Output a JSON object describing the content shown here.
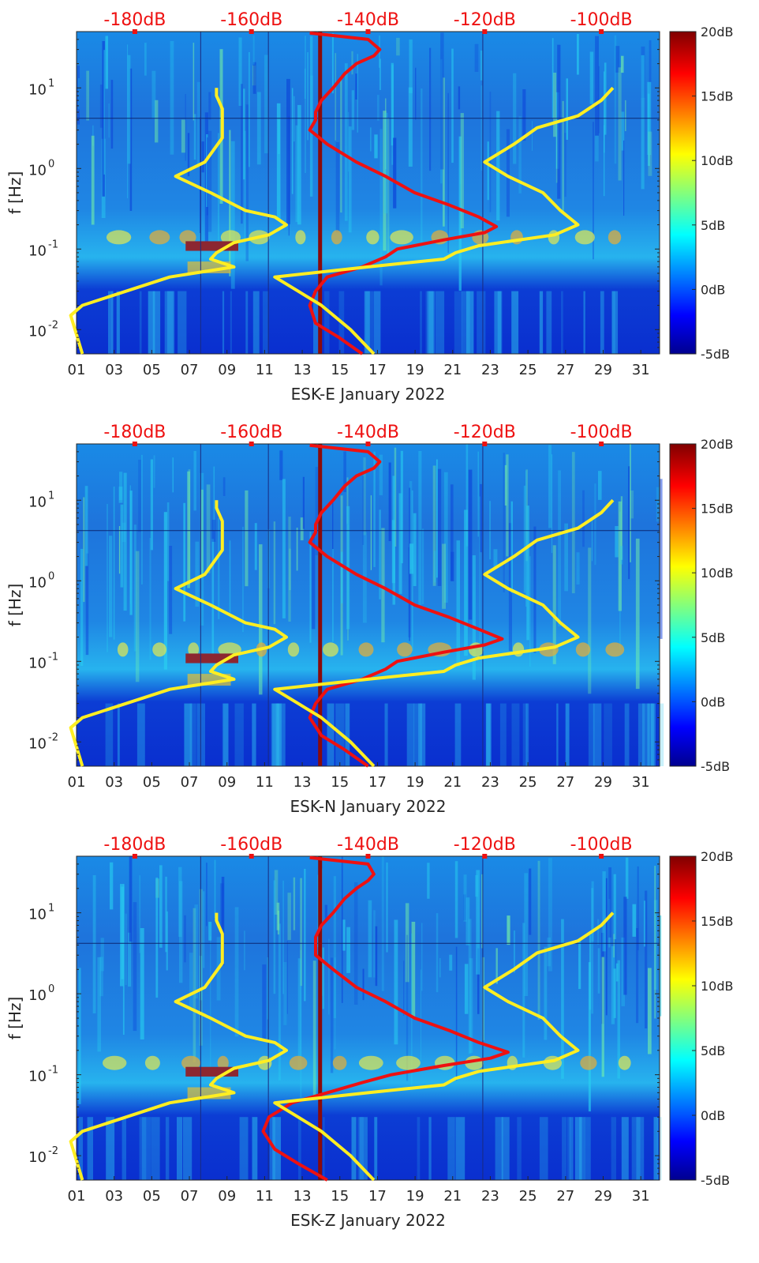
{
  "chart_data": [
    {
      "type": "heatmap",
      "title": "",
      "xlabel": "ESK-E January 2022",
      "ylabel": "f [Hz]",
      "x_ticks": [
        "01",
        "03",
        "05",
        "07",
        "09",
        "11",
        "13",
        "15",
        "17",
        "19",
        "21",
        "23",
        "25",
        "27",
        "29",
        "31"
      ],
      "xlim": [
        1,
        32
      ],
      "ylim_hz": [
        0.005,
        50
      ],
      "y_ticks": [
        {
          "label": "10",
          "exp": "-2",
          "value": 0.01
        },
        {
          "label": "10",
          "exp": "-1",
          "value": 0.1
        },
        {
          "label": "10",
          "exp": "0",
          "value": 1
        },
        {
          "label": "10",
          "exp": "1",
          "value": 10
        }
      ],
      "top_axis_labels": [
        "-180dB",
        "-160dB",
        "-140dB",
        "-120dB",
        "-100dB"
      ],
      "top_axis_range_db": [
        -190,
        -90
      ],
      "colorbar": {
        "ticks": [
          "20dB",
          "15dB",
          "10dB",
          "5dB",
          "0dB",
          "-5dB"
        ],
        "range_db": [
          -5,
          20
        ]
      },
      "series": [
        {
          "name": "red PSD curve",
          "color": "#ee1111",
          "freq": [
            0.005,
            0.008,
            0.012,
            0.02,
            0.03,
            0.045,
            0.06,
            0.08,
            0.1,
            0.13,
            0.16,
            0.19,
            0.25,
            0.35,
            0.5,
            0.8,
            1.2,
            2,
            3,
            4,
            5,
            7,
            10,
            15,
            20,
            25,
            30,
            40,
            48
          ],
          "db": [
            -141,
            -145,
            -149,
            -150,
            -149,
            -147,
            -141,
            -137,
            -135,
            -127,
            -120,
            -118,
            -121,
            -126,
            -132,
            -137,
            -142,
            -147,
            -150,
            -149,
            -149,
            -148,
            -146,
            -144,
            -142,
            -139,
            -138,
            -140,
            -150
          ]
        },
        {
          "name": "yellow low-noise model",
          "color": "#ffee22",
          "freq": [
            0.005,
            0.015,
            0.02,
            0.045,
            0.06,
            0.075,
            0.09,
            0.12,
            0.15,
            0.2,
            0.25,
            0.3,
            0.5,
            0.8,
            1.2,
            2.4,
            4,
            5.5,
            8,
            10
          ],
          "db": [
            -189,
            -191,
            -189,
            -174,
            -163,
            -167,
            -166,
            -163,
            -157,
            -154,
            -156,
            -161,
            -167,
            -173,
            -168,
            -165,
            -165,
            -165,
            -166,
            -166
          ]
        },
        {
          "name": "yellow high-noise model",
          "color": "#ffee22",
          "freq": [
            0.005,
            0.01,
            0.02,
            0.03,
            0.045,
            0.06,
            0.075,
            0.09,
            0.11,
            0.15,
            0.2,
            0.3,
            0.5,
            0.8,
            1.2,
            2,
            3.2,
            4.5,
            7,
            10
          ],
          "db": [
            -139,
            -143,
            -148,
            -152,
            -156,
            -140,
            -127,
            -125,
            -121,
            -108,
            -104,
            -107,
            -110,
            -116,
            -120,
            -115,
            -111,
            -104,
            -100,
            -98
          ]
        }
      ]
    },
    {
      "type": "heatmap",
      "title": "",
      "xlabel": "ESK-N January 2022",
      "ylabel": "f [Hz]",
      "x_ticks": [
        "01",
        "03",
        "05",
        "07",
        "09",
        "11",
        "13",
        "15",
        "17",
        "19",
        "21",
        "23",
        "25",
        "27",
        "29",
        "31"
      ],
      "xlim": [
        1,
        32
      ],
      "ylim_hz": [
        0.005,
        50
      ],
      "y_ticks": [
        {
          "label": "10",
          "exp": "-2",
          "value": 0.01
        },
        {
          "label": "10",
          "exp": "-1",
          "value": 0.1
        },
        {
          "label": "10",
          "exp": "0",
          "value": 1
        },
        {
          "label": "10",
          "exp": "1",
          "value": 10
        }
      ],
      "top_axis_labels": [
        "-180dB",
        "-160dB",
        "-140dB",
        "-120dB",
        "-100dB"
      ],
      "top_axis_range_db": [
        -190,
        -90
      ],
      "colorbar": {
        "ticks": [
          "20dB",
          "15dB",
          "10dB",
          "5dB",
          "0dB",
          "-5dB"
        ],
        "range_db": [
          -5,
          20
        ]
      },
      "series": [
        {
          "name": "red PSD curve",
          "color": "#ee1111",
          "freq": [
            0.005,
            0.008,
            0.012,
            0.02,
            0.03,
            0.045,
            0.06,
            0.08,
            0.1,
            0.13,
            0.16,
            0.19,
            0.25,
            0.35,
            0.5,
            0.8,
            1.2,
            2,
            3,
            4,
            5,
            7,
            10,
            15,
            20,
            25,
            30,
            40,
            48
          ],
          "db": [
            -140,
            -144,
            -148,
            -150,
            -149,
            -147,
            -141,
            -137,
            -135,
            -127,
            -120,
            -117,
            -121,
            -126,
            -132,
            -137,
            -142,
            -147,
            -150,
            -149,
            -149,
            -148,
            -146,
            -144,
            -142,
            -139,
            -138,
            -140,
            -150
          ]
        },
        {
          "name": "yellow low-noise model",
          "color": "#ffee22",
          "freq": [
            0.005,
            0.015,
            0.02,
            0.045,
            0.06,
            0.075,
            0.09,
            0.12,
            0.15,
            0.2,
            0.25,
            0.3,
            0.5,
            0.8,
            1.2,
            2.4,
            4,
            5.5,
            8,
            10
          ],
          "db": [
            -189,
            -191,
            -189,
            -174,
            -163,
            -167,
            -166,
            -163,
            -157,
            -154,
            -156,
            -161,
            -167,
            -173,
            -168,
            -165,
            -165,
            -165,
            -166,
            -166
          ]
        },
        {
          "name": "yellow high-noise model",
          "color": "#ffee22",
          "freq": [
            0.005,
            0.01,
            0.02,
            0.03,
            0.045,
            0.06,
            0.075,
            0.09,
            0.11,
            0.15,
            0.2,
            0.3,
            0.5,
            0.8,
            1.2,
            2,
            3.2,
            4.5,
            7,
            10
          ],
          "db": [
            -139,
            -143,
            -148,
            -152,
            -156,
            -140,
            -127,
            -125,
            -121,
            -108,
            -104,
            -107,
            -110,
            -116,
            -120,
            -115,
            -111,
            -104,
            -100,
            -98
          ]
        }
      ]
    },
    {
      "type": "heatmap",
      "title": "",
      "xlabel": "ESK-Z January 2022",
      "ylabel": "f [Hz]",
      "x_ticks": [
        "01",
        "03",
        "05",
        "07",
        "09",
        "11",
        "13",
        "15",
        "17",
        "19",
        "21",
        "23",
        "25",
        "27",
        "29",
        "31"
      ],
      "xlim": [
        1,
        32
      ],
      "ylim_hz": [
        0.005,
        50
      ],
      "y_ticks": [
        {
          "label": "10",
          "exp": "-2",
          "value": 0.01
        },
        {
          "label": "10",
          "exp": "-1",
          "value": 0.1
        },
        {
          "label": "10",
          "exp": "0",
          "value": 1
        },
        {
          "label": "10",
          "exp": "1",
          "value": 10
        }
      ],
      "top_axis_labels": [
        "-180dB",
        "-160dB",
        "-140dB",
        "-120dB",
        "-100dB"
      ],
      "top_axis_range_db": [
        -190,
        -90
      ],
      "colorbar": {
        "ticks": [
          "20dB",
          "15dB",
          "10dB",
          "5dB",
          "0dB",
          "-5dB"
        ],
        "range_db": [
          -5,
          20
        ]
      },
      "series": [
        {
          "name": "red PSD curve",
          "color": "#ee1111",
          "freq": [
            0.005,
            0.008,
            0.012,
            0.02,
            0.03,
            0.045,
            0.06,
            0.08,
            0.1,
            0.13,
            0.16,
            0.19,
            0.25,
            0.35,
            0.5,
            0.8,
            1.2,
            2,
            3,
            4,
            5,
            7,
            10,
            15,
            20,
            25,
            30,
            40,
            48
          ],
          "db": [
            -147,
            -152,
            -156,
            -158,
            -157,
            -153,
            -147,
            -141,
            -136,
            -127,
            -119,
            -116,
            -121,
            -126,
            -132,
            -137,
            -142,
            -146,
            -149,
            -149,
            -149,
            -148,
            -146,
            -144,
            -142,
            -140,
            -139,
            -140,
            -150
          ]
        },
        {
          "name": "yellow low-noise model",
          "color": "#ffee22",
          "freq": [
            0.005,
            0.015,
            0.02,
            0.045,
            0.06,
            0.075,
            0.09,
            0.12,
            0.15,
            0.2,
            0.25,
            0.3,
            0.5,
            0.8,
            1.2,
            2.4,
            4,
            5.5,
            8,
            10
          ],
          "db": [
            -189,
            -191,
            -189,
            -174,
            -163,
            -167,
            -166,
            -163,
            -157,
            -154,
            -156,
            -161,
            -167,
            -173,
            -168,
            -165,
            -165,
            -165,
            -166,
            -166
          ]
        },
        {
          "name": "yellow high-noise model",
          "color": "#ffee22",
          "freq": [
            0.005,
            0.01,
            0.02,
            0.03,
            0.045,
            0.06,
            0.075,
            0.09,
            0.11,
            0.15,
            0.2,
            0.3,
            0.5,
            0.8,
            1.2,
            2,
            3.2,
            4.5,
            7,
            10
          ],
          "db": [
            -139,
            -143,
            -148,
            -152,
            -156,
            -140,
            -127,
            -125,
            -121,
            -108,
            -104,
            -107,
            -110,
            -116,
            -120,
            -115,
            -111,
            -104,
            -100,
            -98
          ]
        }
      ]
    }
  ]
}
